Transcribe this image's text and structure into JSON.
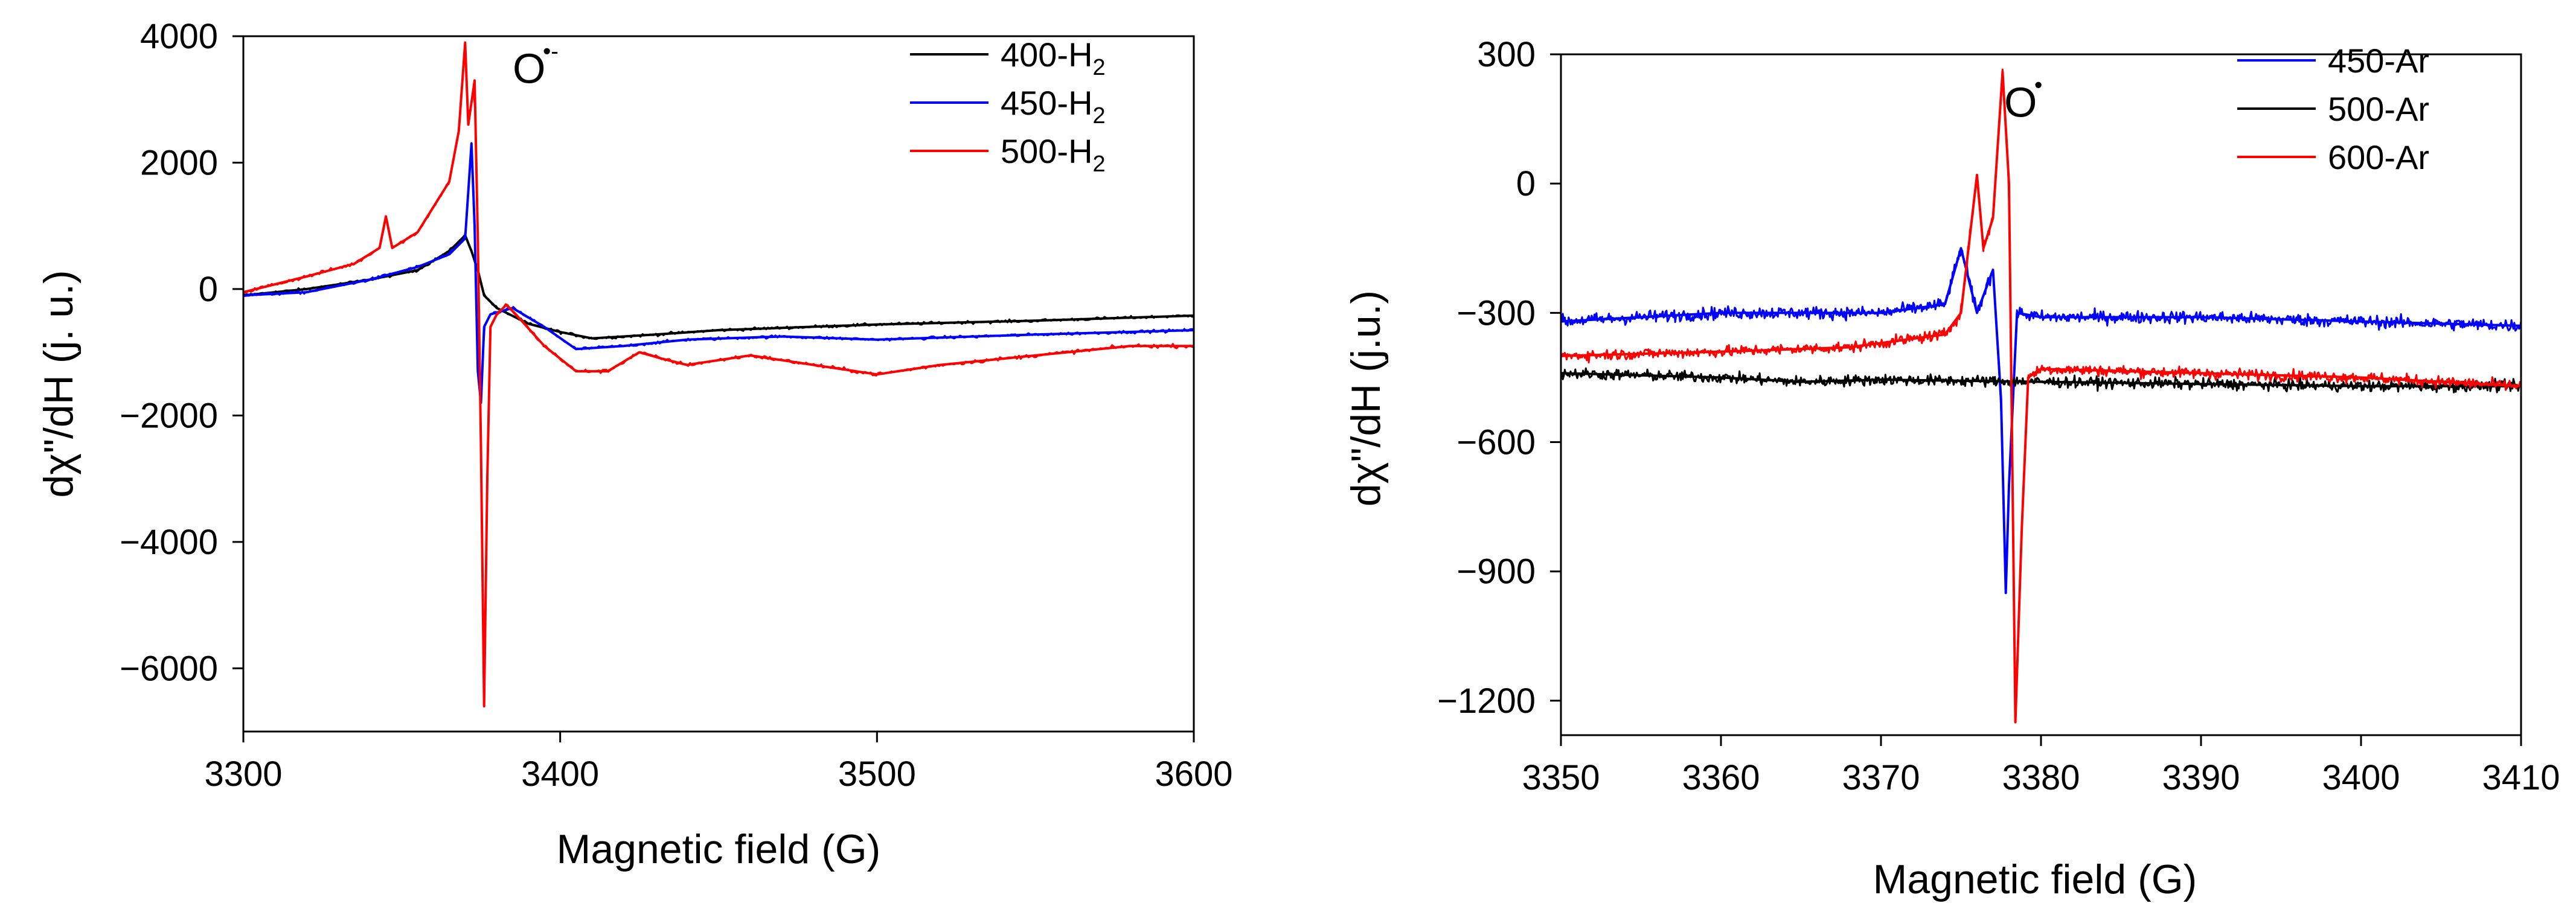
{
  "chart_data": [
    {
      "type": "line",
      "xlabel": "Magnetic field (G)",
      "ylabel": "dχ\"/dH (j. u.)",
      "xlim": [
        3300,
        3600
      ],
      "ylim": [
        -7000,
        4000
      ],
      "xticks": [
        3300,
        3400,
        3500,
        3600
      ],
      "yticks": [
        -6000,
        -4000,
        -2000,
        0,
        2000,
        4000
      ],
      "annotation": {
        "text": "O",
        "superscript": "•-",
        "x": 3385,
        "y": 3500
      },
      "legend_position": "top-right",
      "series": [
        {
          "name": "400-H",
          "subscript": "2",
          "color": "#000000",
          "points": [
            [
              3300,
              -100
            ],
            [
              3320,
              0
            ],
            [
              3340,
              150
            ],
            [
              3355,
              300
            ],
            [
              3365,
              600
            ],
            [
              3370,
              850
            ],
            [
              3372,
              600
            ],
            [
              3374,
              300
            ],
            [
              3376,
              -100
            ],
            [
              3380,
              -300
            ],
            [
              3390,
              -550
            ],
            [
              3400,
              -680
            ],
            [
              3410,
              -780
            ],
            [
              3430,
              -720
            ],
            [
              3450,
              -650
            ],
            [
              3500,
              -560
            ],
            [
              3550,
              -500
            ],
            [
              3600,
              -420
            ]
          ]
        },
        {
          "name": "450-H",
          "subscript": "2",
          "color": "#0000ff",
          "points": [
            [
              3300,
              -100
            ],
            [
              3320,
              -50
            ],
            [
              3340,
              150
            ],
            [
              3355,
              350
            ],
            [
              3365,
              550
            ],
            [
              3370,
              800
            ],
            [
              3372,
              2300
            ],
            [
              3373,
              1000
            ],
            [
              3374,
              -1300
            ],
            [
              3375,
              -1800
            ],
            [
              3376,
              -600
            ],
            [
              3378,
              -400
            ],
            [
              3385,
              -300
            ],
            [
              3395,
              -600
            ],
            [
              3405,
              -950
            ],
            [
              3420,
              -900
            ],
            [
              3440,
              -800
            ],
            [
              3470,
              -750
            ],
            [
              3500,
              -800
            ],
            [
              3550,
              -720
            ],
            [
              3600,
              -650
            ]
          ]
        },
        {
          "name": "500-H",
          "subscript": "2",
          "color": "#ff0000",
          "points": [
            [
              3300,
              -50
            ],
            [
              3320,
              200
            ],
            [
              3335,
              400
            ],
            [
              3343,
              650
            ],
            [
              3345,
              1150
            ],
            [
              3347,
              650
            ],
            [
              3355,
              900
            ],
            [
              3365,
              1700
            ],
            [
              3368,
              2500
            ],
            [
              3370,
              3900
            ],
            [
              3371,
              2600
            ],
            [
              3373,
              3300
            ],
            [
              3374,
              800
            ],
            [
              3375,
              -2500
            ],
            [
              3376,
              -6600
            ],
            [
              3377,
              -3000
            ],
            [
              3378,
              -600
            ],
            [
              3380,
              -400
            ],
            [
              3383,
              -250
            ],
            [
              3386,
              -400
            ],
            [
              3395,
              -900
            ],
            [
              3405,
              -1300
            ],
            [
              3415,
              -1300
            ],
            [
              3425,
              -1000
            ],
            [
              3432,
              -1100
            ],
            [
              3440,
              -1200
            ],
            [
              3460,
              -1050
            ],
            [
              3480,
              -1200
            ],
            [
              3500,
              -1350
            ],
            [
              3520,
              -1200
            ],
            [
              3550,
              -1050
            ],
            [
              3580,
              -900
            ],
            [
              3600,
              -900
            ]
          ]
        }
      ]
    },
    {
      "type": "line",
      "xlabel": "Magnetic field (G)",
      "ylabel": "dχ\"/dH (j.u.)",
      "xlim": [
        3350,
        3410
      ],
      "ylim": [
        -1280,
        300
      ],
      "xticks": [
        3350,
        3360,
        3370,
        3380,
        3390,
        3400,
        3410
      ],
      "yticks": [
        -1200,
        -900,
        -600,
        -300,
        0,
        300
      ],
      "annotation": {
        "text": "O",
        "superscript": "•",
        "x": 3377.7,
        "y": 190
      },
      "legend_position": "top-right",
      "series": [
        {
          "name": "450-Ar",
          "color": "#0000ff",
          "points": [
            [
              3350,
              -320
            ],
            [
              3360,
              -300
            ],
            [
              3370,
              -300
            ],
            [
              3374,
              -280
            ],
            [
              3375,
              -150
            ],
            [
              3376,
              -300
            ],
            [
              3377,
              -200
            ],
            [
              3377.5,
              -500
            ],
            [
              3377.8,
              -950
            ],
            [
              3378,
              -700
            ],
            [
              3378.5,
              -300
            ],
            [
              3380,
              -310
            ],
            [
              3390,
              -310
            ],
            [
              3400,
              -320
            ],
            [
              3410,
              -330
            ]
          ]
        },
        {
          "name": "500-Ar",
          "color": "#000000",
          "points": [
            [
              3350,
              -440
            ],
            [
              3360,
              -450
            ],
            [
              3365,
              -460
            ],
            [
              3370,
              -455
            ],
            [
              3380,
              -460
            ],
            [
              3390,
              -465
            ],
            [
              3400,
              -470
            ],
            [
              3410,
              -470
            ]
          ]
        },
        {
          "name": "600-Ar",
          "color": "#ff0000",
          "points": [
            [
              3350,
              -400
            ],
            [
              3360,
              -390
            ],
            [
              3368,
              -380
            ],
            [
              3374,
              -350
            ],
            [
              3375,
              -300
            ],
            [
              3376,
              20
            ],
            [
              3376.4,
              -150
            ],
            [
              3377,
              -80
            ],
            [
              3377.6,
              260
            ],
            [
              3378,
              0
            ],
            [
              3378.4,
              -1250
            ],
            [
              3378.8,
              -800
            ],
            [
              3379.2,
              -450
            ],
            [
              3380,
              -430
            ],
            [
              3390,
              -440
            ],
            [
              3400,
              -450
            ],
            [
              3410,
              -470
            ]
          ]
        }
      ]
    }
  ]
}
